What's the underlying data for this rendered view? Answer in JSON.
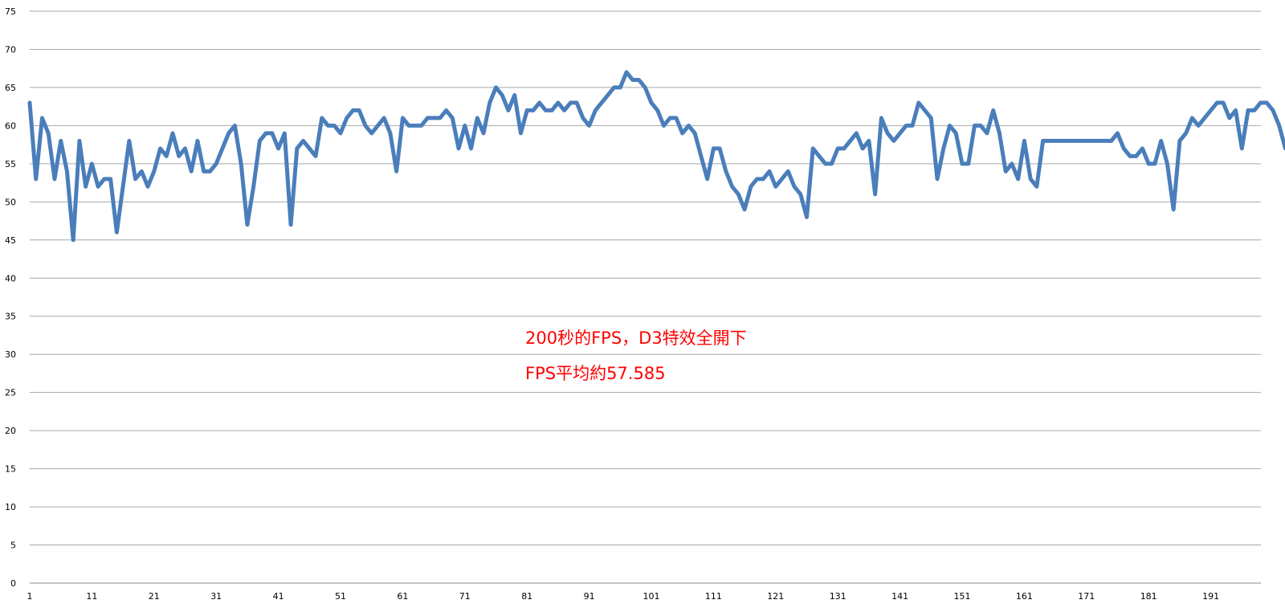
{
  "chart_data": {
    "type": "line",
    "title": "",
    "xlabel": "",
    "ylabel": "",
    "ylim": [
      0,
      75
    ],
    "yticks": [
      0,
      5,
      10,
      15,
      20,
      25,
      30,
      35,
      40,
      45,
      50,
      55,
      60,
      65,
      70,
      75
    ],
    "xticks": [
      1,
      11,
      21,
      31,
      41,
      51,
      61,
      71,
      81,
      91,
      101,
      111,
      121,
      131,
      141,
      151,
      161,
      171,
      181,
      191
    ],
    "grid": true,
    "series_color": "#4a7ebb",
    "annotations": [
      "200秒的FPS，D3特效全開下",
      "FPS平均約57.585"
    ],
    "series": [
      {
        "values": [
          63,
          53,
          61,
          59,
          53,
          58,
          54,
          45,
          58,
          52,
          55,
          52,
          53,
          53,
          46,
          52,
          58,
          53,
          54,
          52,
          54,
          57,
          56,
          59,
          56,
          57,
          54,
          58,
          54,
          54,
          55,
          57,
          59,
          60,
          55,
          47,
          52,
          58,
          59,
          59,
          57,
          59,
          47,
          57,
          58,
          57,
          56,
          61,
          60,
          60,
          59,
          61,
          62,
          62,
          60,
          59,
          60,
          61,
          59,
          54,
          61,
          60,
          60,
          60,
          61,
          61,
          61,
          62,
          61,
          57,
          60,
          57,
          61,
          59,
          63,
          65,
          64,
          62,
          64,
          59,
          62,
          62,
          63,
          62,
          62,
          63,
          62,
          63,
          63,
          61,
          60,
          62,
          63,
          64,
          65,
          65,
          67,
          66,
          66,
          65,
          63,
          62,
          60,
          61,
          61,
          59,
          60,
          59,
          56,
          53,
          57,
          57,
          54,
          52,
          51,
          49,
          52,
          53,
          53,
          54,
          52,
          53,
          54,
          52,
          51,
          48,
          57,
          56,
          55,
          55,
          57,
          57,
          58,
          59,
          57,
          58,
          51,
          61,
          59,
          58,
          59,
          60,
          60,
          63,
          62,
          61,
          53,
          57,
          60,
          59,
          55,
          55,
          60,
          60,
          59,
          62,
          59,
          54,
          55,
          53,
          58,
          53,
          52,
          58,
          58,
          58,
          58,
          58,
          58,
          58,
          58,
          58,
          58,
          58,
          58,
          59,
          57,
          56,
          56,
          57,
          55,
          55,
          58,
          55,
          49,
          58,
          59,
          61,
          60,
          61,
          62,
          63,
          63,
          61,
          62,
          57,
          62,
          62,
          63,
          63,
          62,
          60,
          57
        ]
      }
    ]
  }
}
